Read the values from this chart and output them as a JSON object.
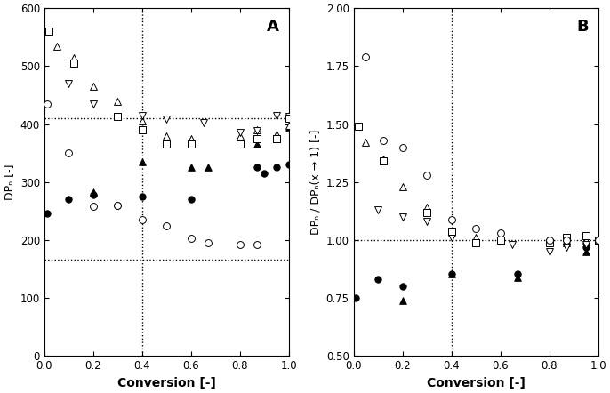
{
  "panel_A": {
    "ylabel": "DPₙ [-]",
    "xlabel": "Conversion [-]",
    "label": "A",
    "ylim": [
      0,
      600
    ],
    "xlim": [
      0.0,
      1.0
    ],
    "yticks": [
      0,
      100,
      200,
      300,
      400,
      500,
      600
    ],
    "xticks": [
      0.0,
      0.2,
      0.4,
      0.6,
      0.8,
      1.0
    ],
    "vline": 0.4,
    "hlines": [
      410,
      166
    ],
    "series": {
      "filled_circle": {
        "x": [
          0.01,
          0.1,
          0.2,
          0.3,
          0.4,
          0.6,
          0.87,
          0.9,
          0.95,
          1.0
        ],
        "y": [
          246,
          270,
          278,
          260,
          275,
          270,
          325,
          315,
          325,
          330
        ],
        "marker": "o",
        "facecolor": "black",
        "edgecolor": "black",
        "size": 28
      },
      "filled_triangle": {
        "x": [
          0.2,
          0.4,
          0.6,
          0.67,
          0.87,
          0.95,
          1.0
        ],
        "y": [
          283,
          335,
          325,
          325,
          365,
          375,
          395
        ],
        "marker": "^",
        "facecolor": "black",
        "edgecolor": "black",
        "size": 30
      },
      "open_triangle_up": {
        "x": [
          0.05,
          0.12,
          0.2,
          0.3,
          0.4,
          0.5,
          0.6,
          0.8,
          0.87,
          0.95,
          1.0
        ],
        "y": [
          535,
          515,
          465,
          440,
          405,
          380,
          375,
          380,
          390,
          382,
          398
        ],
        "marker": "^",
        "facecolor": "white",
        "edgecolor": "black",
        "size": 32
      },
      "open_triangle_down": {
        "x": [
          0.1,
          0.2,
          0.4,
          0.5,
          0.65,
          0.8,
          0.87,
          0.95,
          1.0
        ],
        "y": [
          470,
          435,
          415,
          408,
          402,
          385,
          388,
          415,
          413
        ],
        "marker": "v",
        "facecolor": "white",
        "edgecolor": "black",
        "size": 32
      },
      "open_square": {
        "x": [
          0.02,
          0.12,
          0.3,
          0.4,
          0.5,
          0.6,
          0.8,
          0.87,
          0.95,
          1.0
        ],
        "y": [
          560,
          505,
          413,
          390,
          365,
          365,
          365,
          375,
          375,
          410
        ],
        "marker": "s",
        "facecolor": "white",
        "edgecolor": "black",
        "size": 28
      },
      "open_circle": {
        "x": [
          0.01,
          0.1,
          0.2,
          0.3,
          0.4,
          0.5,
          0.6,
          0.67,
          0.8,
          0.87
        ],
        "y": [
          435,
          350,
          258,
          260,
          235,
          225,
          203,
          195,
          192,
          192
        ],
        "marker": "o",
        "facecolor": "white",
        "edgecolor": "black",
        "size": 32
      }
    }
  },
  "panel_B": {
    "ylabel": "DPₙ / DPₙ(x → 1) [-]",
    "xlabel": "Conversion [-]",
    "label": "B",
    "ylim": [
      0.5,
      2.0
    ],
    "xlim": [
      0.0,
      1.0
    ],
    "yticks": [
      0.5,
      0.75,
      1.0,
      1.25,
      1.5,
      1.75,
      2.0
    ],
    "xticks": [
      0.0,
      0.2,
      0.4,
      0.6,
      0.8,
      1.0
    ],
    "vline": 0.4,
    "hlines": [
      1.0
    ],
    "series": {
      "filled_circle": {
        "x": [
          0.01,
          0.1,
          0.2,
          0.4,
          0.67,
          0.87,
          0.95,
          1.0
        ],
        "y": [
          0.75,
          0.83,
          0.8,
          0.855,
          0.855,
          1.0,
          0.97,
          1.0
        ],
        "marker": "o",
        "facecolor": "black",
        "edgecolor": "black",
        "size": 28
      },
      "filled_triangle": {
        "x": [
          0.2,
          0.4,
          0.67,
          0.87,
          0.95,
          1.0
        ],
        "y": [
          0.74,
          0.855,
          0.84,
          1.0,
          0.95,
          1.01
        ],
        "marker": "^",
        "facecolor": "black",
        "edgecolor": "black",
        "size": 30
      },
      "open_triangle_up": {
        "x": [
          0.05,
          0.12,
          0.2,
          0.3,
          0.4,
          0.5,
          0.6,
          0.8,
          0.87,
          0.95,
          1.0
        ],
        "y": [
          1.42,
          1.35,
          1.23,
          1.14,
          1.03,
          1.01,
          1.01,
          1.0,
          0.99,
          1.0,
          1.0
        ],
        "marker": "^",
        "facecolor": "white",
        "edgecolor": "black",
        "size": 32
      },
      "open_triangle_down": {
        "x": [
          0.1,
          0.2,
          0.3,
          0.4,
          0.5,
          0.65,
          0.8,
          0.87,
          0.95,
          1.0
        ],
        "y": [
          1.13,
          1.1,
          1.08,
          1.01,
          0.99,
          0.98,
          0.95,
          0.97,
          0.98,
          1.0
        ],
        "marker": "v",
        "facecolor": "white",
        "edgecolor": "black",
        "size": 32
      },
      "open_square": {
        "x": [
          0.02,
          0.12,
          0.3,
          0.4,
          0.5,
          0.6,
          0.8,
          0.87,
          0.95,
          1.0
        ],
        "y": [
          1.49,
          1.34,
          1.12,
          1.04,
          0.99,
          1.0,
          0.99,
          1.01,
          1.02,
          1.0
        ],
        "marker": "s",
        "facecolor": "white",
        "edgecolor": "black",
        "size": 28
      },
      "open_circle": {
        "x": [
          0.05,
          0.12,
          0.2,
          0.3,
          0.4,
          0.5,
          0.6,
          0.8,
          0.87,
          1.0
        ],
        "y": [
          1.79,
          1.43,
          1.4,
          1.28,
          1.09,
          1.05,
          1.03,
          1.0,
          1.0,
          1.0
        ],
        "marker": "o",
        "facecolor": "white",
        "edgecolor": "black",
        "size": 32
      }
    }
  },
  "figure": {
    "bg_color": "white",
    "figsize": [
      6.86,
      4.42
    ],
    "dpi": 100
  }
}
